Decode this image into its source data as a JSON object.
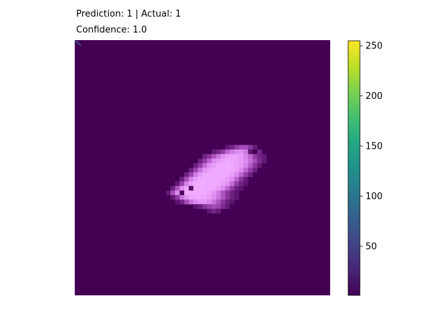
{
  "title": {
    "line1": "Prediction: 1 | Actual: 1",
    "line2": "Confidence: 1.0"
  },
  "chart_data": {
    "type": "heatmap",
    "colormap": "viridis",
    "overlay_colormap": "pink-magenta",
    "background_color": "#440154",
    "grid": false,
    "axes_visible": false,
    "image_size": [
      56,
      56
    ],
    "value_range": [
      0,
      255
    ],
    "blob": {
      "description_of_content": "bright pink blob in center",
      "rows": [
        {
          "row": 23,
          "cols": [
            33,
            39
          ],
          "values": [
            40,
            60,
            90,
            110,
            110,
            80,
            40
          ]
        },
        {
          "row": 24,
          "cols": [
            30,
            40
          ],
          "values": [
            40,
            60,
            90,
            140,
            170,
            190,
            200,
            170,
            30,
            0,
            60
          ]
        },
        {
          "row": 25,
          "cols": [
            28,
            41
          ],
          "values": [
            50,
            80,
            120,
            160,
            200,
            230,
            240,
            240,
            220,
            180,
            140,
            90,
            60,
            40
          ]
        },
        {
          "row": 26,
          "cols": [
            27,
            41
          ],
          "values": [
            50,
            90,
            140,
            190,
            220,
            240,
            250,
            250,
            240,
            220,
            190,
            150,
            110,
            70,
            40
          ]
        },
        {
          "row": 27,
          "cols": [
            26,
            40
          ],
          "values": [
            50,
            90,
            150,
            200,
            230,
            250,
            255,
            255,
            250,
            240,
            220,
            180,
            130,
            80,
            40
          ]
        },
        {
          "row": 28,
          "cols": [
            25,
            39
          ],
          "values": [
            50,
            100,
            160,
            210,
            240,
            255,
            255,
            255,
            255,
            250,
            230,
            190,
            140,
            90,
            50
          ]
        },
        {
          "row": 29,
          "cols": [
            24,
            38
          ],
          "values": [
            50,
            100,
            170,
            220,
            250,
            255,
            255,
            255,
            255,
            250,
            230,
            190,
            140,
            90,
            50
          ]
        },
        {
          "row": 30,
          "cols": [
            23,
            37
          ],
          "values": [
            50,
            110,
            180,
            230,
            255,
            255,
            255,
            255,
            255,
            250,
            230,
            190,
            140,
            80,
            40
          ]
        },
        {
          "row": 31,
          "cols": [
            22,
            37
          ],
          "values": [
            40,
            100,
            180,
            235,
            255,
            255,
            255,
            255,
            255,
            250,
            235,
            200,
            150,
            90,
            50,
            30
          ]
        },
        {
          "row": 32,
          "cols": [
            21,
            36
          ],
          "values": [
            50,
            120,
            200,
            250,
            20,
            255,
            255,
            255,
            255,
            250,
            230,
            190,
            140,
            90,
            50,
            30
          ]
        },
        {
          "row": 33,
          "cols": [
            20,
            35
          ],
          "values": [
            40,
            110,
            190,
            10,
            255,
            255,
            255,
            255,
            250,
            240,
            210,
            170,
            120,
            80,
            50,
            30
          ]
        },
        {
          "row": 34,
          "cols": [
            21,
            35
          ],
          "values": [
            40,
            90,
            160,
            210,
            240,
            250,
            250,
            245,
            230,
            200,
            160,
            120,
            80,
            50,
            30
          ]
        },
        {
          "row": 35,
          "cols": [
            22,
            34
          ],
          "values": [
            30,
            60,
            110,
            160,
            190,
            210,
            210,
            190,
            160,
            120,
            80,
            50,
            30
          ]
        },
        {
          "row": 36,
          "cols": [
            26,
            33
          ],
          "values": [
            30,
            50,
            80,
            100,
            110,
            100,
            70,
            40
          ]
        },
        {
          "row": 37,
          "cols": [
            29,
            31
          ],
          "values": [
            40,
            60,
            40
          ]
        }
      ]
    },
    "corner_mark": {
      "row": 0,
      "col": 0,
      "values": [
        90,
        90
      ],
      "color": "#3b528b"
    }
  },
  "colorbar": {
    "ticks": [
      "250",
      "200",
      "150",
      "100",
      "50"
    ],
    "tick_values": [
      250,
      200,
      150,
      100,
      50
    ],
    "range": [
      1,
      255
    ],
    "colormap": "viridis"
  },
  "colors": {
    "background": "#ffffff",
    "text": "#000000",
    "axis_frame": "#000000"
  }
}
